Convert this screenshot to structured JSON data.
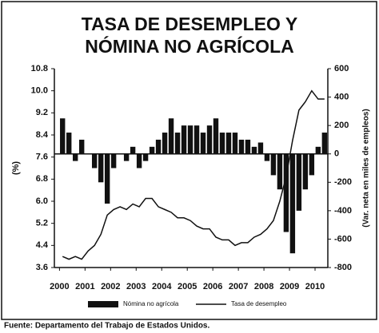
{
  "chart_data": {
    "type": "bar_line",
    "title": "TASA DE DESEMPLEO Y NÓMINA NO AGRÍCOLA",
    "source": "Fuente: Departamento del Trabajo de Estados Unidos.",
    "ylabel": "(%)",
    "y2label": "(Var. neta en miles de empleos)",
    "x": [
      2000,
      2000.25,
      2000.5,
      2000.75,
      2001,
      2001.25,
      2001.5,
      2001.75,
      2002,
      2002.25,
      2002.5,
      2002.75,
      2003,
      2003.25,
      2003.5,
      2003.75,
      2004,
      2004.25,
      2004.5,
      2004.75,
      2005,
      2005.25,
      2005.5,
      2005.75,
      2006,
      2006.25,
      2006.5,
      2006.75,
      2007,
      2007.25,
      2007.5,
      2007.75,
      2008,
      2008.25,
      2008.5,
      2008.75,
      2009,
      2009.25,
      2009.5,
      2009.75,
      2010,
      2010.25
    ],
    "xlim": [
      1999.8,
      2010.5
    ],
    "xticks": [
      2000,
      2001,
      2002,
      2003,
      2004,
      2005,
      2006,
      2007,
      2008,
      2009,
      2010
    ],
    "ylim": [
      3.6,
      10.8
    ],
    "yticks": [
      3.6,
      4.4,
      5.2,
      {
        "value": 6,
        "label": "6.0"
      },
      6.8,
      7.6,
      8.4,
      9.2,
      {
        "value": 10,
        "label": "10.0"
      },
      10.8
    ],
    "y2lim": [
      -800,
      600
    ],
    "y2ticks": [
      -800,
      -600,
      -400,
      -200,
      0,
      200,
      400,
      600
    ],
    "series": [
      {
        "name": "Nómina no agrícola",
        "color": "#111111",
        "axis": "y2",
        "kind": "bar",
        "values": [
          250,
          150,
          -50,
          100,
          0,
          -100,
          -200,
          -350,
          -100,
          0,
          -50,
          50,
          -100,
          -50,
          50,
          100,
          150,
          250,
          150,
          200,
          200,
          200,
          150,
          200,
          250,
          150,
          150,
          150,
          100,
          100,
          50,
          80,
          -50,
          -150,
          -250,
          -550,
          -700,
          -400,
          -250,
          -150,
          50,
          150
        ]
      },
      {
        "name": "Tasa de desempleo",
        "color": "#111111",
        "axis": "y",
        "kind": "line",
        "values": [
          4.0,
          3.9,
          4.0,
          3.9,
          4.2,
          4.4,
          4.8,
          5.5,
          5.7,
          5.8,
          5.7,
          5.9,
          5.8,
          6.1,
          6.1,
          5.8,
          5.7,
          5.6,
          5.4,
          5.4,
          5.3,
          5.1,
          5.0,
          5.0,
          4.7,
          4.6,
          4.6,
          4.4,
          4.5,
          4.5,
          4.7,
          4.8,
          5.0,
          5.3,
          6.0,
          6.9,
          8.2,
          9.3,
          9.6,
          10.0,
          9.7,
          9.7
        ]
      }
    ]
  }
}
